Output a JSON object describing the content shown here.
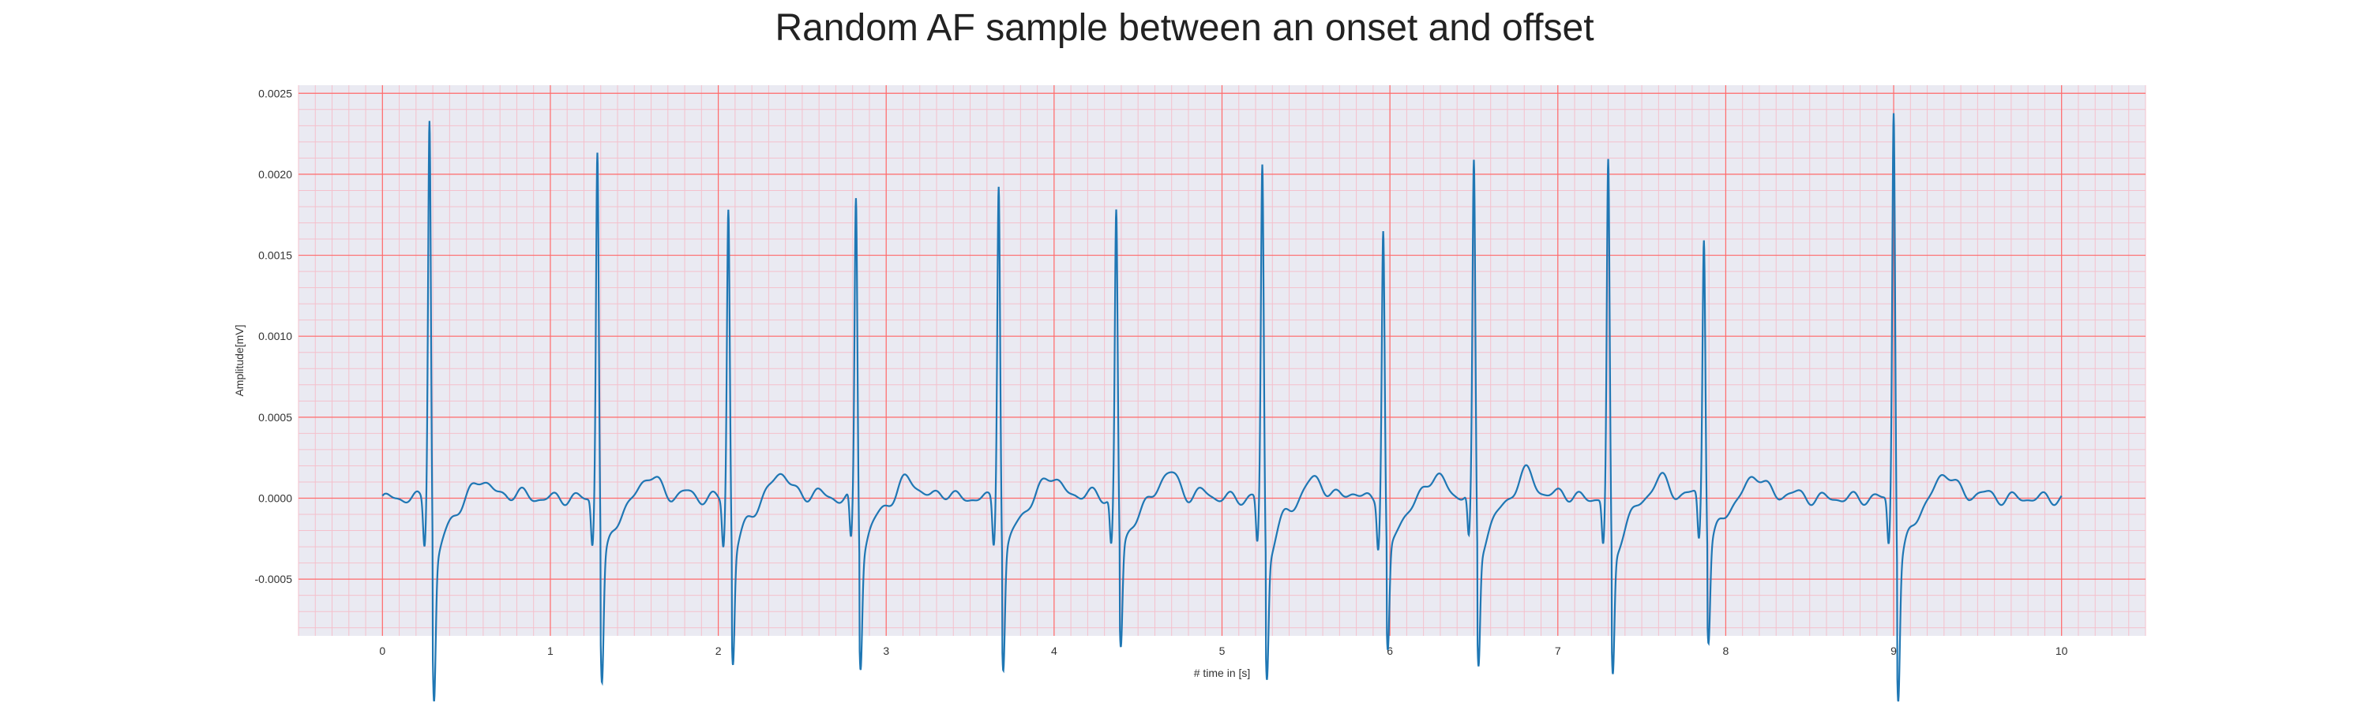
{
  "chart_data": {
    "type": "line",
    "title": "Random AF sample between an onset and offset",
    "xlabel": "# time in [s]",
    "ylabel": "Amplitude[mV]",
    "xlim": [
      -0.5,
      10.5
    ],
    "ylim": [
      -0.00085,
      0.00255
    ],
    "x_ticks": [
      0,
      1,
      2,
      3,
      4,
      5,
      6,
      7,
      8,
      9,
      10
    ],
    "x_tick_labels": [
      "0",
      "1",
      "2",
      "3",
      "4",
      "5",
      "6",
      "7",
      "8",
      "9",
      "10"
    ],
    "y_ticks": [
      -0.0005,
      0.0,
      0.0005,
      0.001,
      0.0015,
      0.002,
      0.0025
    ],
    "y_tick_labels": [
      "-0.0005",
      "0.0000",
      "0.0005",
      "0.0010",
      "0.0015",
      "0.0020",
      "0.0025"
    ],
    "grid": true,
    "x_range": [
      0,
      10
    ],
    "series": [
      {
        "color": "#1f77b4",
        "beats": [
          {
            "t": 0.28,
            "r": 0.00237,
            "s": -0.00071
          },
          {
            "t": 1.28,
            "r": 0.00216,
            "s": -0.00065
          },
          {
            "t": 2.06,
            "r": 0.0018,
            "s": -0.00058
          },
          {
            "t": 2.82,
            "r": 0.00186,
            "s": -0.00058
          },
          {
            "t": 3.67,
            "r": 0.00197,
            "s": -0.0006
          },
          {
            "t": 4.37,
            "r": 0.00178,
            "s": -0.00053
          },
          {
            "t": 5.24,
            "r": 0.00206,
            "s": -0.00063
          },
          {
            "t": 5.96,
            "r": 0.00166,
            "s": -0.00055
          },
          {
            "t": 6.5,
            "r": 0.00202,
            "s": -0.0006
          },
          {
            "t": 7.3,
            "r": 0.00207,
            "s": -0.00063
          },
          {
            "t": 7.87,
            "r": 0.00161,
            "s": -0.0005
          },
          {
            "t": 9.0,
            "r": 0.00241,
            "s": -0.0007
          }
        ],
        "t_wave_amplitude": 0.00015
      }
    ]
  },
  "colors": {
    "background": "#eaeaf2",
    "major_grid": "#ff6b6b",
    "minor_grid": "#f4c0cc",
    "line": "#1f77b4"
  }
}
